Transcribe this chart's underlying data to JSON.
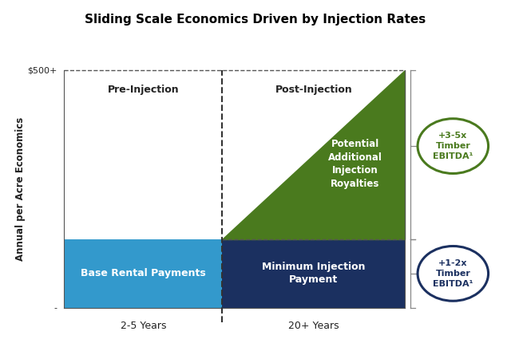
{
  "title": "Sliding Scale Economics Driven by Injection Rates",
  "ylabel": "Annual per Acre Economics",
  "x_left_label": "2-5 Years",
  "x_right_label": "20+ Years",
  "y_top_label": "$500+",
  "y_bottom_label": "-",
  "pre_injection_label": "Pre-Injection",
  "post_injection_label": "Post-Injection",
  "base_rental_label": "Base Rental Payments",
  "min_injection_label": "Minimum Injection\nPayment",
  "royalties_label": "Potential\nAdditional\nInjection\nRoyalties",
  "bubble1_lines": [
    "+3-5x",
    "Timber",
    "EBITDA¹"
  ],
  "bubble2_lines": [
    "+1-2x",
    "Timber",
    "EBITDA¹"
  ],
  "color_blue_light": "#3399CC",
  "color_blue_dark": "#1B3060",
  "color_green": "#4A7A1E",
  "color_bubble1_text": "#4A7A1E",
  "color_bubble1_border": "#4A7A1E",
  "color_bubble2_text": "#1B3060",
  "color_bubble2_border": "#1B3060",
  "background": "#FFFFFF"
}
